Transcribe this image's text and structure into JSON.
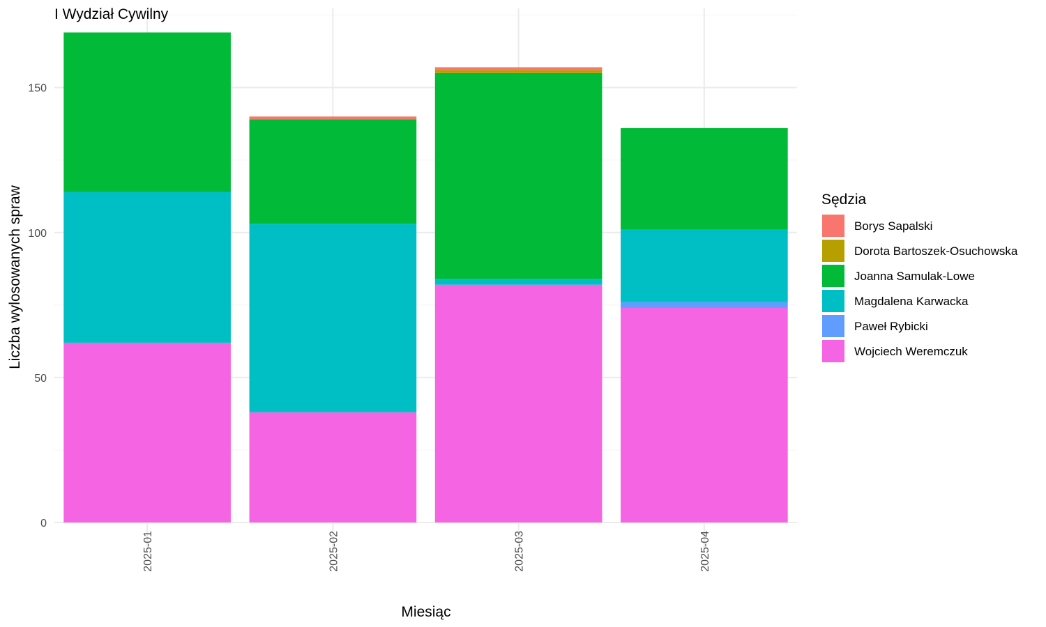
{
  "chart_data": {
    "type": "bar",
    "stacked": true,
    "title": "I Wydział Cywilny",
    "xlabel": "Miesiąc",
    "ylabel": "Liczba wylosowanych spraw",
    "categories": [
      "2025-01",
      "2025-02",
      "2025-03",
      "2025-04"
    ],
    "ylim": [
      0,
      170
    ],
    "yticks": [
      0,
      50,
      100,
      150
    ],
    "grid": true,
    "legend": {
      "title": "Sędzia",
      "position": "right"
    },
    "series": [
      {
        "name": "Wojciech Weremczuk",
        "color": "#F564E3",
        "values": [
          62,
          38,
          82,
          74
        ]
      },
      {
        "name": "Paweł Rybicki",
        "color": "#619CFF",
        "values": [
          0,
          0,
          0,
          2
        ]
      },
      {
        "name": "Magdalena Karwacka",
        "color": "#00BFC4",
        "values": [
          52,
          65,
          2,
          25
        ]
      },
      {
        "name": "Joanna Samulak-Lowe",
        "color": "#00BA38",
        "values": [
          55,
          36,
          71,
          35
        ]
      },
      {
        "name": "Dorota Bartoszek-Osuchowska",
        "color": "#B79F00",
        "values": [
          0,
          0,
          1,
          0
        ]
      },
      {
        "name": "Borys Sapalski",
        "color": "#F8766D",
        "values": [
          0,
          1,
          1,
          0
        ]
      }
    ],
    "legend_order": [
      "Borys Sapalski",
      "Dorota Bartoszek-Osuchowska",
      "Joanna Samulak-Lowe",
      "Magdalena Karwacka",
      "Paweł Rybicki",
      "Wojciech Weremczuk"
    ]
  }
}
